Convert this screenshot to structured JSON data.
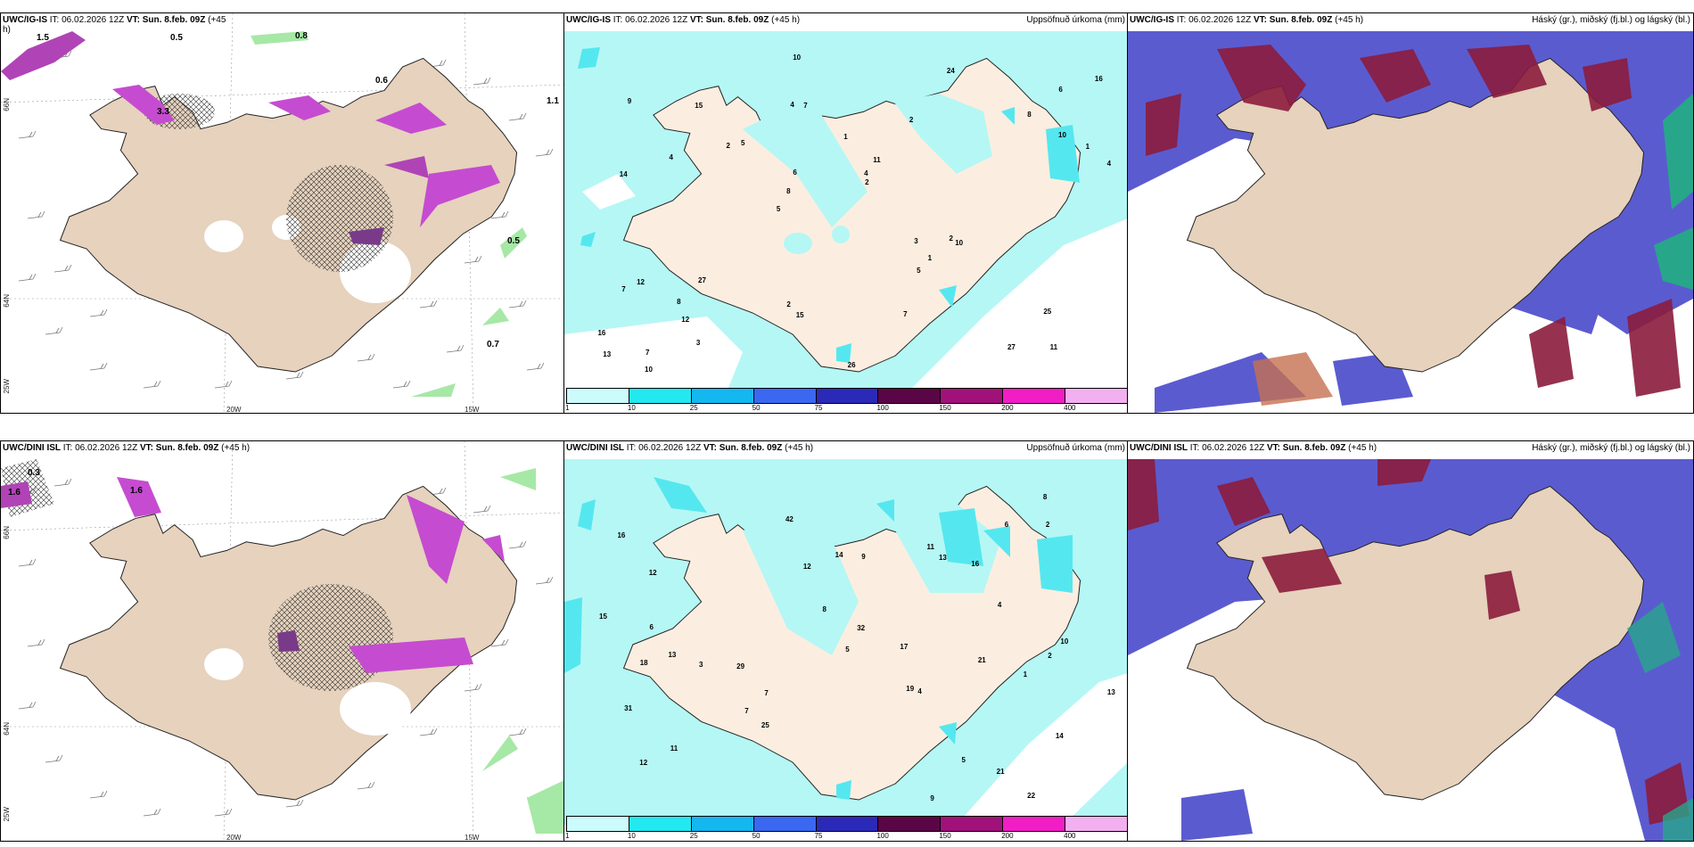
{
  "colors": {
    "land": "#e6d2bd",
    "landPrecip": "#fbeee0",
    "precipBase": "#b5f7f5",
    "cyan": "#55e7ef",
    "purple": "#5b5bd0",
    "darkred": "#8b1c3c",
    "magenta": "#d34bd8"
  },
  "wind_top": {
    "header": {
      "model": "UWC/IG-IS",
      "it": "IT: 06.02.2026 12Z",
      "vt": "VT: Sun. 8.feb. 09Z",
      "lead": "(+45",
      "lead2": "h)"
    },
    "ticks": {
      "lon1": "20W",
      "lon2": "15W",
      "lat1": "66N",
      "lat2": "64N",
      "lat3": "25W"
    },
    "values": [
      "1.5",
      "0.5",
      "0.8",
      "3.3",
      "0.6",
      "1.1",
      "0.5",
      "0.7"
    ]
  },
  "precip_top": {
    "header": {
      "model": "UWC/IG-IS",
      "it": "IT: 06.02.2026 12Z",
      "vt": "VT: Sun. 8.feb. 09Z",
      "lead": "(+45 h)"
    },
    "right_title": "Uppsöfnuð úrkoma (mm)",
    "numbers": [
      "11",
      "14",
      "6",
      "5",
      "2",
      "7",
      "4",
      "1",
      "12",
      "5",
      "16",
      "12",
      "7",
      "11",
      "10",
      "9",
      "10",
      "4",
      "3",
      "10",
      "8",
      "2",
      "6",
      "15",
      "24",
      "27",
      "27",
      "25",
      "2",
      "26",
      "2",
      "4",
      "5",
      "3",
      "1",
      "4",
      "13",
      "15",
      "2",
      "7",
      "8",
      "16",
      "1",
      "7",
      "8",
      "10"
    ],
    "colorbar_labels": [
      "1",
      "10",
      "25",
      "50",
      "75",
      "100",
      "150",
      "200",
      "400"
    ]
  },
  "cloud_top": {
    "header": {
      "model": "UWC/IG-IS",
      "it": "IT: 06.02.2026 12Z",
      "vt": "VT: Sun. 8.feb. 09Z",
      "lead": "(+45 h)"
    },
    "right_title": "Háský (gr.), miðský (fj.bl.) og lágský (bl.)"
  },
  "wind_bottom": {
    "header": {
      "model": "UWC/DINI ISL",
      "it": "IT: 06.02.2026 12Z",
      "vt": "VT: Sun. 8.feb. 09Z",
      "lead": "(+45 h)"
    },
    "ticks": {
      "lon1": "20W",
      "lon2": "15W",
      "lat1": "66N",
      "lat2": "64N",
      "lat3": "25W"
    },
    "values": [
      "1.6",
      "0.3",
      "1.6"
    ]
  },
  "precip_bottom": {
    "header": {
      "model": "UWC/DINI ISL",
      "it": "IT: 06.02.2026 12Z",
      "vt": "VT: Sun. 8.feb. 09Z",
      "lead": "(+45 h)"
    },
    "right_title": "Uppsöfnuð úrkoma (mm)",
    "numbers": [
      "22",
      "13",
      "19",
      "16",
      "14",
      "12",
      "11",
      "29",
      "16",
      "14",
      "13",
      "21",
      "25",
      "42",
      "17",
      "31",
      "21",
      "32",
      "15",
      "12",
      "8",
      "9",
      "4",
      "13",
      "10",
      "6",
      "3",
      "5",
      "8",
      "2",
      "4",
      "18",
      "7",
      "11",
      "12",
      "1",
      "2",
      "5",
      "6",
      "9",
      "7"
    ],
    "colorbar_labels": [
      "1",
      "10",
      "25",
      "50",
      "75",
      "100",
      "150",
      "200",
      "400"
    ]
  },
  "cloud_bottom": {
    "header": {
      "model": "UWC/DINI ISL",
      "it": "IT: 06.02.2026 12Z",
      "vt": "VT: Sun. 8.feb. 09Z",
      "lead": "(+45 h)"
    },
    "right_title": "Háský (gr.), miðský (fj.bl.) og lágský (bl.)"
  }
}
